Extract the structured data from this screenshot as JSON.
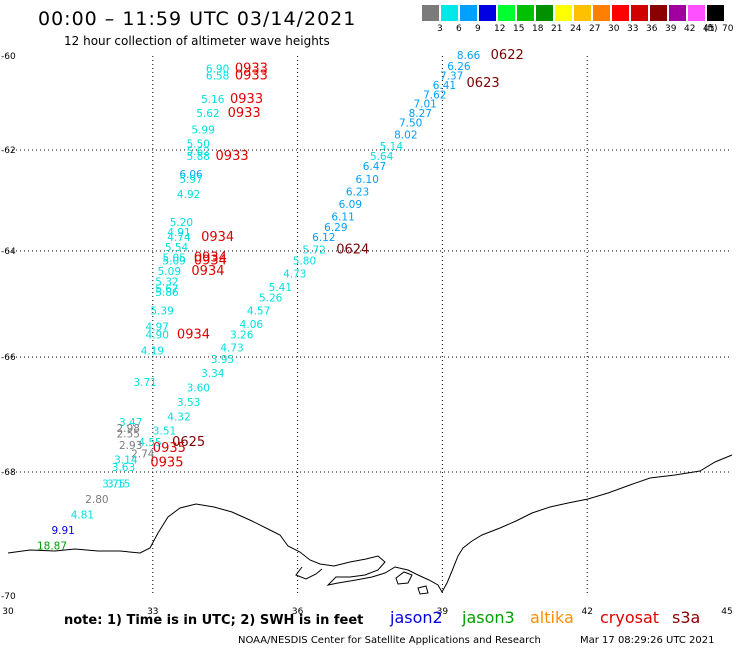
{
  "header": {
    "title": "00:00 – 11:59 UTC 03/14/2021",
    "subtitle": "12 hour collection of altimeter wave heights"
  },
  "color_scale": {
    "unit": "(ft)",
    "bins": [
      {
        "label": "3",
        "color": "#7b7b7b"
      },
      {
        "label": "6",
        "color": "#00e8e8"
      },
      {
        "label": "9",
        "color": "#00a0ff"
      },
      {
        "label": "12",
        "color": "#0000e0"
      },
      {
        "label": "15",
        "color": "#00ff30"
      },
      {
        "label": "18",
        "color": "#00c000"
      },
      {
        "label": "21",
        "color": "#009000"
      },
      {
        "label": "24",
        "color": "#ffff00"
      },
      {
        "label": "27",
        "color": "#ffc000"
      },
      {
        "label": "30",
        "color": "#ff8000"
      },
      {
        "label": "33",
        "color": "#ff0000"
      },
      {
        "label": "36",
        "color": "#d00000"
      },
      {
        "label": "39",
        "color": "#8b0000"
      },
      {
        "label": "42",
        "color": "#a000a0"
      },
      {
        "label": "45",
        "color": "#ff50ff"
      },
      {
        "label": "70",
        "color": "#000000"
      }
    ]
  },
  "axes": {
    "lat_labels": [
      "-60",
      "-62",
      "-64",
      "-66",
      "-68",
      "-70"
    ],
    "lon_labels": [
      "30",
      "33",
      "36",
      "39",
      "42",
      "45"
    ]
  },
  "time_labels": [
    {
      "text": "0622",
      "lon": 40.0,
      "lat": -60.06,
      "color": "#7a0000"
    },
    {
      "text": "0623",
      "lon": 39.5,
      "lat": -60.66,
      "color": "#7a0000"
    },
    {
      "text": "0624",
      "lon": 36.8,
      "lat": -64.05,
      "color": "#7a0000"
    },
    {
      "text": "0625",
      "lon": 33.4,
      "lat": -67.55,
      "color": "#7a0000"
    },
    {
      "text": "0933",
      "lon": 34.7,
      "lat": -60.35,
      "color": "#e00000"
    },
    {
      "text": "0933",
      "lon": 34.7,
      "lat": -60.5,
      "color": "#e00000"
    },
    {
      "text": "0933",
      "lon": 34.6,
      "lat": -61.0,
      "color": "#e00000"
    },
    {
      "text": "0933",
      "lon": 34.55,
      "lat": -61.3,
      "color": "#e00000"
    },
    {
      "text": "0933",
      "lon": 34.3,
      "lat": -62.2,
      "color": "#e00000"
    },
    {
      "text": "0934",
      "lon": 34.0,
      "lat": -63.8,
      "color": "#e00000"
    },
    {
      "text": "0934",
      "lon": 33.85,
      "lat": -64.2,
      "color": "#e00000"
    },
    {
      "text": "0934",
      "lon": 33.85,
      "lat": -64.25,
      "color": "#e00000"
    },
    {
      "text": "0934",
      "lon": 33.8,
      "lat": -64.45,
      "color": "#e00000"
    },
    {
      "text": "0934",
      "lon": 33.5,
      "lat": -65.65,
      "color": "#e00000"
    },
    {
      "text": "0935",
      "lon": 33.0,
      "lat": -67.65,
      "color": "#e00000"
    },
    {
      "text": "0935",
      "lon": 32.95,
      "lat": -67.9,
      "color": "#e00000"
    }
  ],
  "wave_heights": [
    {
      "text": "8.66",
      "lon": 39.3,
      "lat": -60.06,
      "color": "#00a0ff"
    },
    {
      "text": "6.26",
      "lon": 39.1,
      "lat": -60.3,
      "color": "#00a0ff"
    },
    {
      "text": "7.37",
      "lon": 38.95,
      "lat": -60.5,
      "color": "#00a0ff"
    },
    {
      "text": "6.41",
      "lon": 38.8,
      "lat": -60.7,
      "color": "#00a0ff"
    },
    {
      "text": "7.62",
      "lon": 38.6,
      "lat": -60.9,
      "color": "#00a0ff"
    },
    {
      "text": "7.01",
      "lon": 38.4,
      "lat": -61.1,
      "color": "#00a0ff"
    },
    {
      "text": "8.27",
      "lon": 38.3,
      "lat": -61.3,
      "color": "#00a0ff"
    },
    {
      "text": "7.50",
      "lon": 38.1,
      "lat": -61.5,
      "color": "#00a0ff"
    },
    {
      "text": "8.02",
      "lon": 38.0,
      "lat": -61.75,
      "color": "#00a0ff"
    },
    {
      "text": "5.14",
      "lon": 37.7,
      "lat": -62.0,
      "color": "#00e0e0"
    },
    {
      "text": "5.64",
      "lon": 37.5,
      "lat": -62.2,
      "color": "#00e0e0"
    },
    {
      "text": "6.47",
      "lon": 37.35,
      "lat": -62.4,
      "color": "#00a0ff"
    },
    {
      "text": "6.10",
      "lon": 37.2,
      "lat": -62.65,
      "color": "#00a0ff"
    },
    {
      "text": "6.23",
      "lon": 37.0,
      "lat": -62.9,
      "color": "#00a0ff"
    },
    {
      "text": "6.09",
      "lon": 36.85,
      "lat": -63.15,
      "color": "#00a0ff"
    },
    {
      "text": "6.11",
      "lon": 36.7,
      "lat": -63.4,
      "color": "#00a0ff"
    },
    {
      "text": "6.29",
      "lon": 36.55,
      "lat": -63.6,
      "color": "#00a0ff"
    },
    {
      "text": "6.12",
      "lon": 36.3,
      "lat": -63.8,
      "color": "#00a0ff"
    },
    {
      "text": "5.72",
      "lon": 36.1,
      "lat": -64.05,
      "color": "#00e0e0"
    },
    {
      "text": "5.80",
      "lon": 35.9,
      "lat": -64.25,
      "color": "#00e0e0"
    },
    {
      "text": "4.73",
      "lon": 35.7,
      "lat": -64.5,
      "color": "#00e0e0"
    },
    {
      "text": "5.41",
      "lon": 35.4,
      "lat": -64.75,
      "color": "#00e0e0"
    },
    {
      "text": "5.26",
      "lon": 35.2,
      "lat": -64.95,
      "color": "#00e0e0"
    },
    {
      "text": "4.57",
      "lon": 34.95,
      "lat": -65.2,
      "color": "#00e0e0"
    },
    {
      "text": "4.06",
      "lon": 34.8,
      "lat": -65.45,
      "color": "#00e0e0"
    },
    {
      "text": "3.26",
      "lon": 34.6,
      "lat": -65.65,
      "color": "#00e0e0"
    },
    {
      "text": "4.73",
      "lon": 34.4,
      "lat": -65.9,
      "color": "#00e0e0"
    },
    {
      "text": "3.95",
      "lon": 34.2,
      "lat": -66.1,
      "color": "#00e0e0"
    },
    {
      "text": "3.34",
      "lon": 34.0,
      "lat": -66.35,
      "color": "#00e0e0"
    },
    {
      "text": "3.60",
      "lon": 33.7,
      "lat": -66.6,
      "color": "#00e0e0"
    },
    {
      "text": "3.53",
      "lon": 33.5,
      "lat": -66.85,
      "color": "#00e0e0"
    },
    {
      "text": "4.32",
      "lon": 33.3,
      "lat": -67.1,
      "color": "#00e0e0"
    },
    {
      "text": "3.51",
      "lon": 33.0,
      "lat": -67.35,
      "color": "#00e0e0"
    },
    {
      "text": "6.90",
      "lon": 34.1,
      "lat": -60.35,
      "color": "#00e0e0"
    },
    {
      "text": "6.58",
      "lon": 34.1,
      "lat": -60.5,
      "color": "#00e0e0"
    },
    {
      "text": "5.16",
      "lon": 34.0,
      "lat": -61.0,
      "color": "#00e0e0"
    },
    {
      "text": "5.62",
      "lon": 33.9,
      "lat": -61.3,
      "color": "#00e0e0"
    },
    {
      "text": "5.99",
      "lon": 33.8,
      "lat": -61.65,
      "color": "#00e0e0"
    },
    {
      "text": "5.50",
      "lon": 33.7,
      "lat": -61.95,
      "color": "#00e0e0"
    },
    {
      "text": "5.62",
      "lon": 33.7,
      "lat": -62.1,
      "color": "#00e0e0"
    },
    {
      "text": "5.88",
      "lon": 33.7,
      "lat": -62.2,
      "color": "#00e0e0"
    },
    {
      "text": "6.06",
      "lon": 33.55,
      "lat": -62.55,
      "color": "#00a0ff"
    },
    {
      "text": "5.97",
      "lon": 33.55,
      "lat": -62.65,
      "color": "#00e0e0"
    },
    {
      "text": "4.92",
      "lon": 33.5,
      "lat": -62.95,
      "color": "#00e0e0"
    },
    {
      "text": "5.20",
      "lon": 33.35,
      "lat": -63.5,
      "color": "#00e0e0"
    },
    {
      "text": "4.91",
      "lon": 33.3,
      "lat": -63.7,
      "color": "#00e0e0"
    },
    {
      "text": "4.74",
      "lon": 33.3,
      "lat": -63.8,
      "color": "#00e0e0"
    },
    {
      "text": "5.54",
      "lon": 33.25,
      "lat": -64.0,
      "color": "#00e0e0"
    },
    {
      "text": "5.05",
      "lon": 33.2,
      "lat": -64.2,
      "color": "#00e0e0"
    },
    {
      "text": "5.09",
      "lon": 33.2,
      "lat": -64.25,
      "color": "#00e0e0"
    },
    {
      "text": "5.09",
      "lon": 33.1,
      "lat": -64.45,
      "color": "#00e0e0"
    },
    {
      "text": "5.32",
      "lon": 33.05,
      "lat": -64.65,
      "color": "#00e0e0"
    },
    {
      "text": "5.67",
      "lon": 33.05,
      "lat": -64.78,
      "color": "#00e0e0"
    },
    {
      "text": "5.86",
      "lon": 33.05,
      "lat": -64.85,
      "color": "#00e0e0"
    },
    {
      "text": "5.39",
      "lon": 32.95,
      "lat": -65.2,
      "color": "#00e0e0"
    },
    {
      "text": "4.97",
      "lon": 32.85,
      "lat": -65.5,
      "color": "#00e0e0"
    },
    {
      "text": "4.90",
      "lon": 32.85,
      "lat": -65.65,
      "color": "#00e0e0"
    },
    {
      "text": "4.19",
      "lon": 32.75,
      "lat": -65.95,
      "color": "#00e0e0"
    },
    {
      "text": "3.71",
      "lon": 32.6,
      "lat": -66.5,
      "color": "#00e0e0"
    },
    {
      "text": "3.47",
      "lon": 32.3,
      "lat": -67.2,
      "color": "#00e0e0"
    },
    {
      "text": "2.98",
      "lon": 32.25,
      "lat": -67.3,
      "color": "#7b7b7b"
    },
    {
      "text": "2.55",
      "lon": 32.25,
      "lat": -67.4,
      "color": "#7b7b7b"
    },
    {
      "text": "4.55",
      "lon": 32.7,
      "lat": -67.55,
      "color": "#00e0e0"
    },
    {
      "text": "2.93",
      "lon": 32.3,
      "lat": -67.6,
      "color": "#7b7b7b"
    },
    {
      "text": "2.74",
      "lon": 32.55,
      "lat": -67.75,
      "color": "#7b7b7b"
    },
    {
      "text": "3.14",
      "lon": 32.2,
      "lat": -67.85,
      "color": "#00e0e0"
    },
    {
      "text": "3.63",
      "lon": 32.15,
      "lat": -67.98,
      "color": "#00e0e0"
    },
    {
      "text": "3.75",
      "lon": 31.95,
      "lat": -68.25,
      "color": "#00e0e0"
    },
    {
      "text": "3.15",
      "lon": 32.05,
      "lat": -68.25,
      "color": "#00e0e0"
    },
    {
      "text": "2.80",
      "lon": 31.6,
      "lat": -68.5,
      "color": "#7b7b7b"
    },
    {
      "text": "4.81",
      "lon": 31.3,
      "lat": -68.75,
      "color": "#00e0e0"
    },
    {
      "text": "9.91",
      "lon": 30.9,
      "lat": -69.0,
      "color": "#0000e0"
    },
    {
      "text": "18.87",
      "lon": 30.6,
      "lat": -69.25,
      "color": "#00a000"
    }
  ],
  "notes": {
    "text": "note:  1) Time is in UTC;  2) SWH is in feet"
  },
  "satellites": [
    {
      "name": "jason2",
      "color": "#0000e0"
    },
    {
      "name": "jason3",
      "color": "#00a000"
    },
    {
      "name": "altika",
      "color": "#ff9000"
    },
    {
      "name": "cryosat",
      "color": "#e00000"
    },
    {
      "name": "s3a",
      "color": "#8b0000"
    }
  ],
  "footer": {
    "credit": "NOAA/NESDIS Center for Satellite Applications and Research",
    "timestamp": "Mar 17 08:29:26 UTC 2021"
  }
}
